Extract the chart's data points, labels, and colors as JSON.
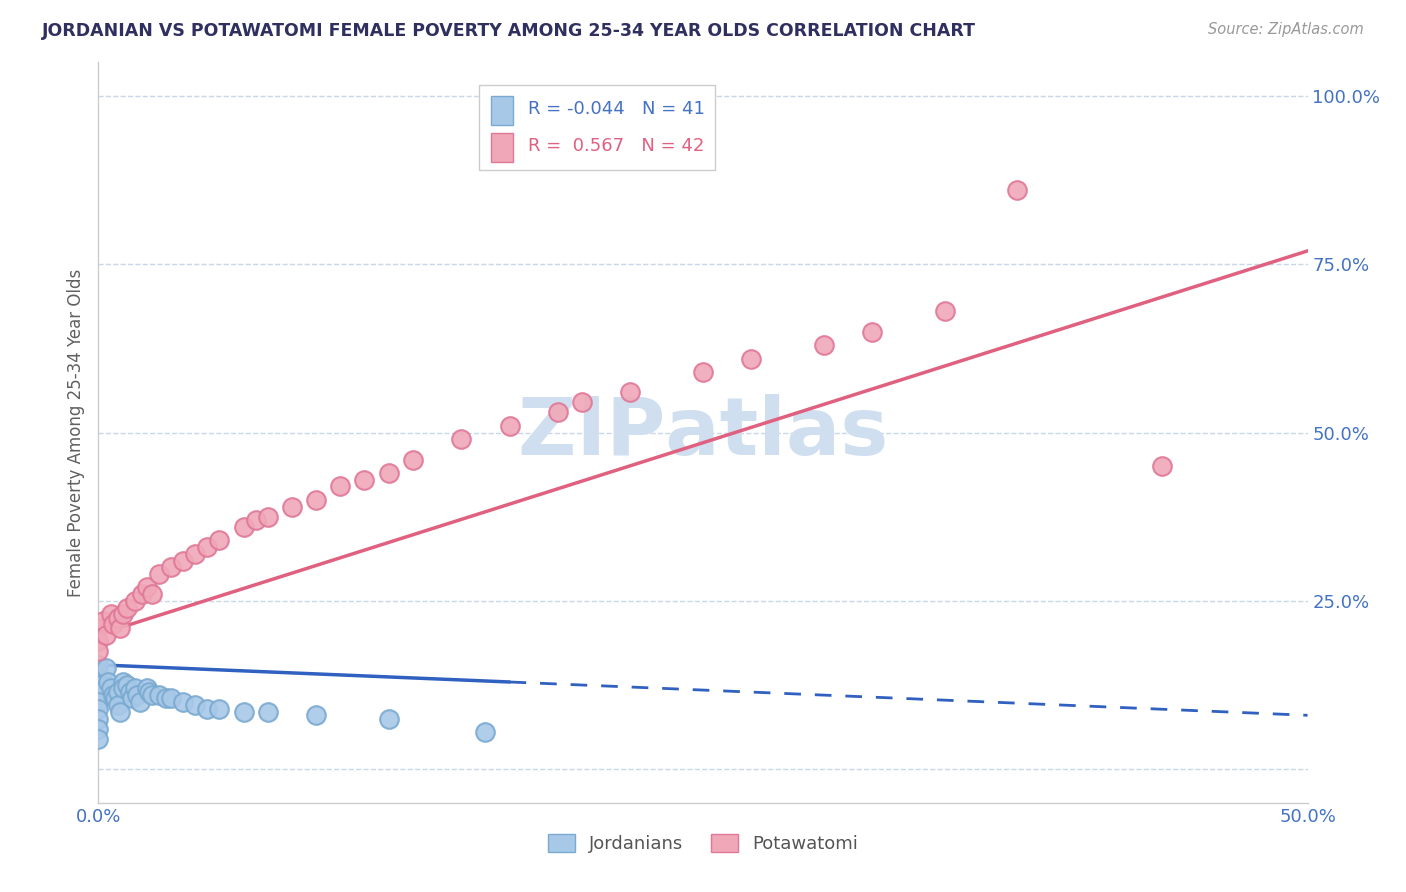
{
  "title": "JORDANIAN VS POTAWATOMI FEMALE POVERTY AMONG 25-34 YEAR OLDS CORRELATION CHART",
  "source": "Source: ZipAtlas.com",
  "ylabel": "Female Poverty Among 25-34 Year Olds",
  "xlim": [
    0.0,
    0.5
  ],
  "ylim": [
    -0.05,
    1.05
  ],
  "grid_color": "#c8d8e8",
  "background_color": "#ffffff",
  "jordanian_color": "#a8c8e8",
  "jordanian_edge_color": "#7aaad0",
  "potawatomi_color": "#f0a8b8",
  "potawatomi_edge_color": "#e07898",
  "jordanian_line_color": "#3060c0",
  "potawatomi_line_color": "#e06080",
  "watermark_color": "#d0dff0",
  "title_color": "#303060",
  "axis_color": "#4472c4",
  "label_color": "#606060",
  "R_jordanian": -0.044,
  "N_jordanian": 41,
  "R_potawatomi": 0.567,
  "N_potawatomi": 42,
  "jordanian_x": [
    0.0,
    0.0,
    0.0,
    0.0,
    0.0,
    0.0,
    0.0,
    0.0,
    0.0,
    0.0,
    0.003,
    0.004,
    0.005,
    0.006,
    0.007,
    0.008,
    0.008,
    0.009,
    0.01,
    0.01,
    0.012,
    0.013,
    0.014,
    0.015,
    0.016,
    0.017,
    0.02,
    0.021,
    0.022,
    0.025,
    0.028,
    0.03,
    0.035,
    0.04,
    0.045,
    0.05,
    0.06,
    0.07,
    0.09,
    0.12,
    0.16
  ],
  "jordanian_y": [
    0.155,
    0.145,
    0.135,
    0.125,
    0.115,
    0.1,
    0.09,
    0.075,
    0.06,
    0.045,
    0.15,
    0.13,
    0.12,
    0.11,
    0.105,
    0.115,
    0.095,
    0.085,
    0.13,
    0.12,
    0.125,
    0.115,
    0.105,
    0.12,
    0.11,
    0.1,
    0.12,
    0.115,
    0.11,
    0.11,
    0.105,
    0.105,
    0.1,
    0.095,
    0.09,
    0.09,
    0.085,
    0.085,
    0.08,
    0.075,
    0.055
  ],
  "potawatomi_x": [
    0.0,
    0.0,
    0.0,
    0.002,
    0.003,
    0.005,
    0.006,
    0.008,
    0.009,
    0.01,
    0.012,
    0.015,
    0.018,
    0.02,
    0.022,
    0.025,
    0.03,
    0.035,
    0.04,
    0.045,
    0.05,
    0.06,
    0.065,
    0.07,
    0.08,
    0.09,
    0.1,
    0.11,
    0.12,
    0.13,
    0.15,
    0.17,
    0.19,
    0.2,
    0.22,
    0.25,
    0.27,
    0.3,
    0.32,
    0.35,
    0.38,
    0.44
  ],
  "potawatomi_y": [
    0.21,
    0.19,
    0.175,
    0.22,
    0.2,
    0.23,
    0.215,
    0.225,
    0.21,
    0.23,
    0.24,
    0.25,
    0.26,
    0.27,
    0.26,
    0.29,
    0.3,
    0.31,
    0.32,
    0.33,
    0.34,
    0.36,
    0.37,
    0.375,
    0.39,
    0.4,
    0.42,
    0.43,
    0.44,
    0.46,
    0.49,
    0.51,
    0.53,
    0.545,
    0.56,
    0.59,
    0.61,
    0.63,
    0.65,
    0.68,
    0.86,
    0.45
  ],
  "legend_labels": [
    "Jordanians",
    "Potawatomi"
  ]
}
